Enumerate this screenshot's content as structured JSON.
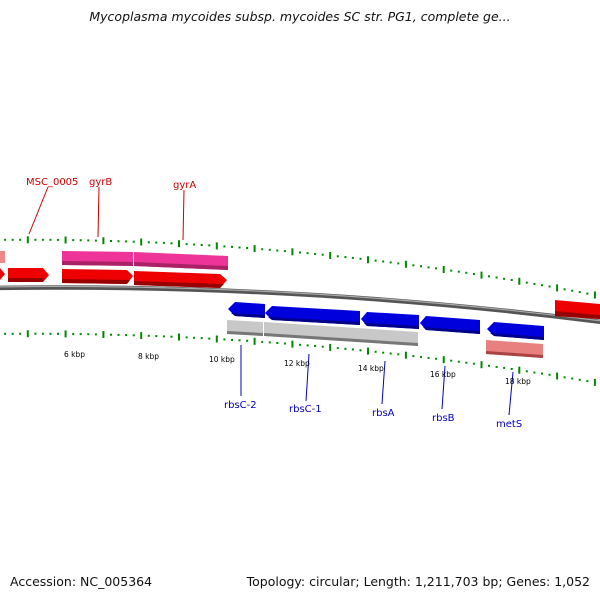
{
  "header": {
    "title": "Mycoplasma mycoides subsp. mycoides SC str. PG1, complete ge..."
  },
  "footer": {
    "accession": "Accession: NC_005364",
    "stats": "Topology: circular; Length: 1,211,703 bp; Genes: 1,052"
  },
  "colors": {
    "forward_gene": "#ee0000",
    "forward_gene_light": "#ee8888",
    "forward_pink": "#ee3399",
    "reverse_gene": "#0000dd",
    "reverse_gray": "#bbbbbb",
    "reverse_pink": "#e88080",
    "forward_label": "#cc0000",
    "reverse_label": "#0000bb",
    "tick": "#008800",
    "backbone": "#777777"
  },
  "scale_ticks": [
    {
      "label": "6 kbp"
    },
    {
      "label": "8 kbp"
    },
    {
      "label": "10 kbp"
    },
    {
      "label": "12 kbp"
    },
    {
      "label": "14 kbp"
    },
    {
      "label": "16 kbp"
    },
    {
      "label": "18 kbp"
    }
  ],
  "forward_labels": [
    {
      "text": "MSC_0005"
    },
    {
      "text": "gyrB"
    },
    {
      "text": "gyrA"
    }
  ],
  "reverse_labels": [
    {
      "text": "rbsC-2"
    },
    {
      "text": "rbsC-1"
    },
    {
      "text": "rbsA"
    },
    {
      "text": "rbsB"
    },
    {
      "text": "metS"
    }
  ]
}
